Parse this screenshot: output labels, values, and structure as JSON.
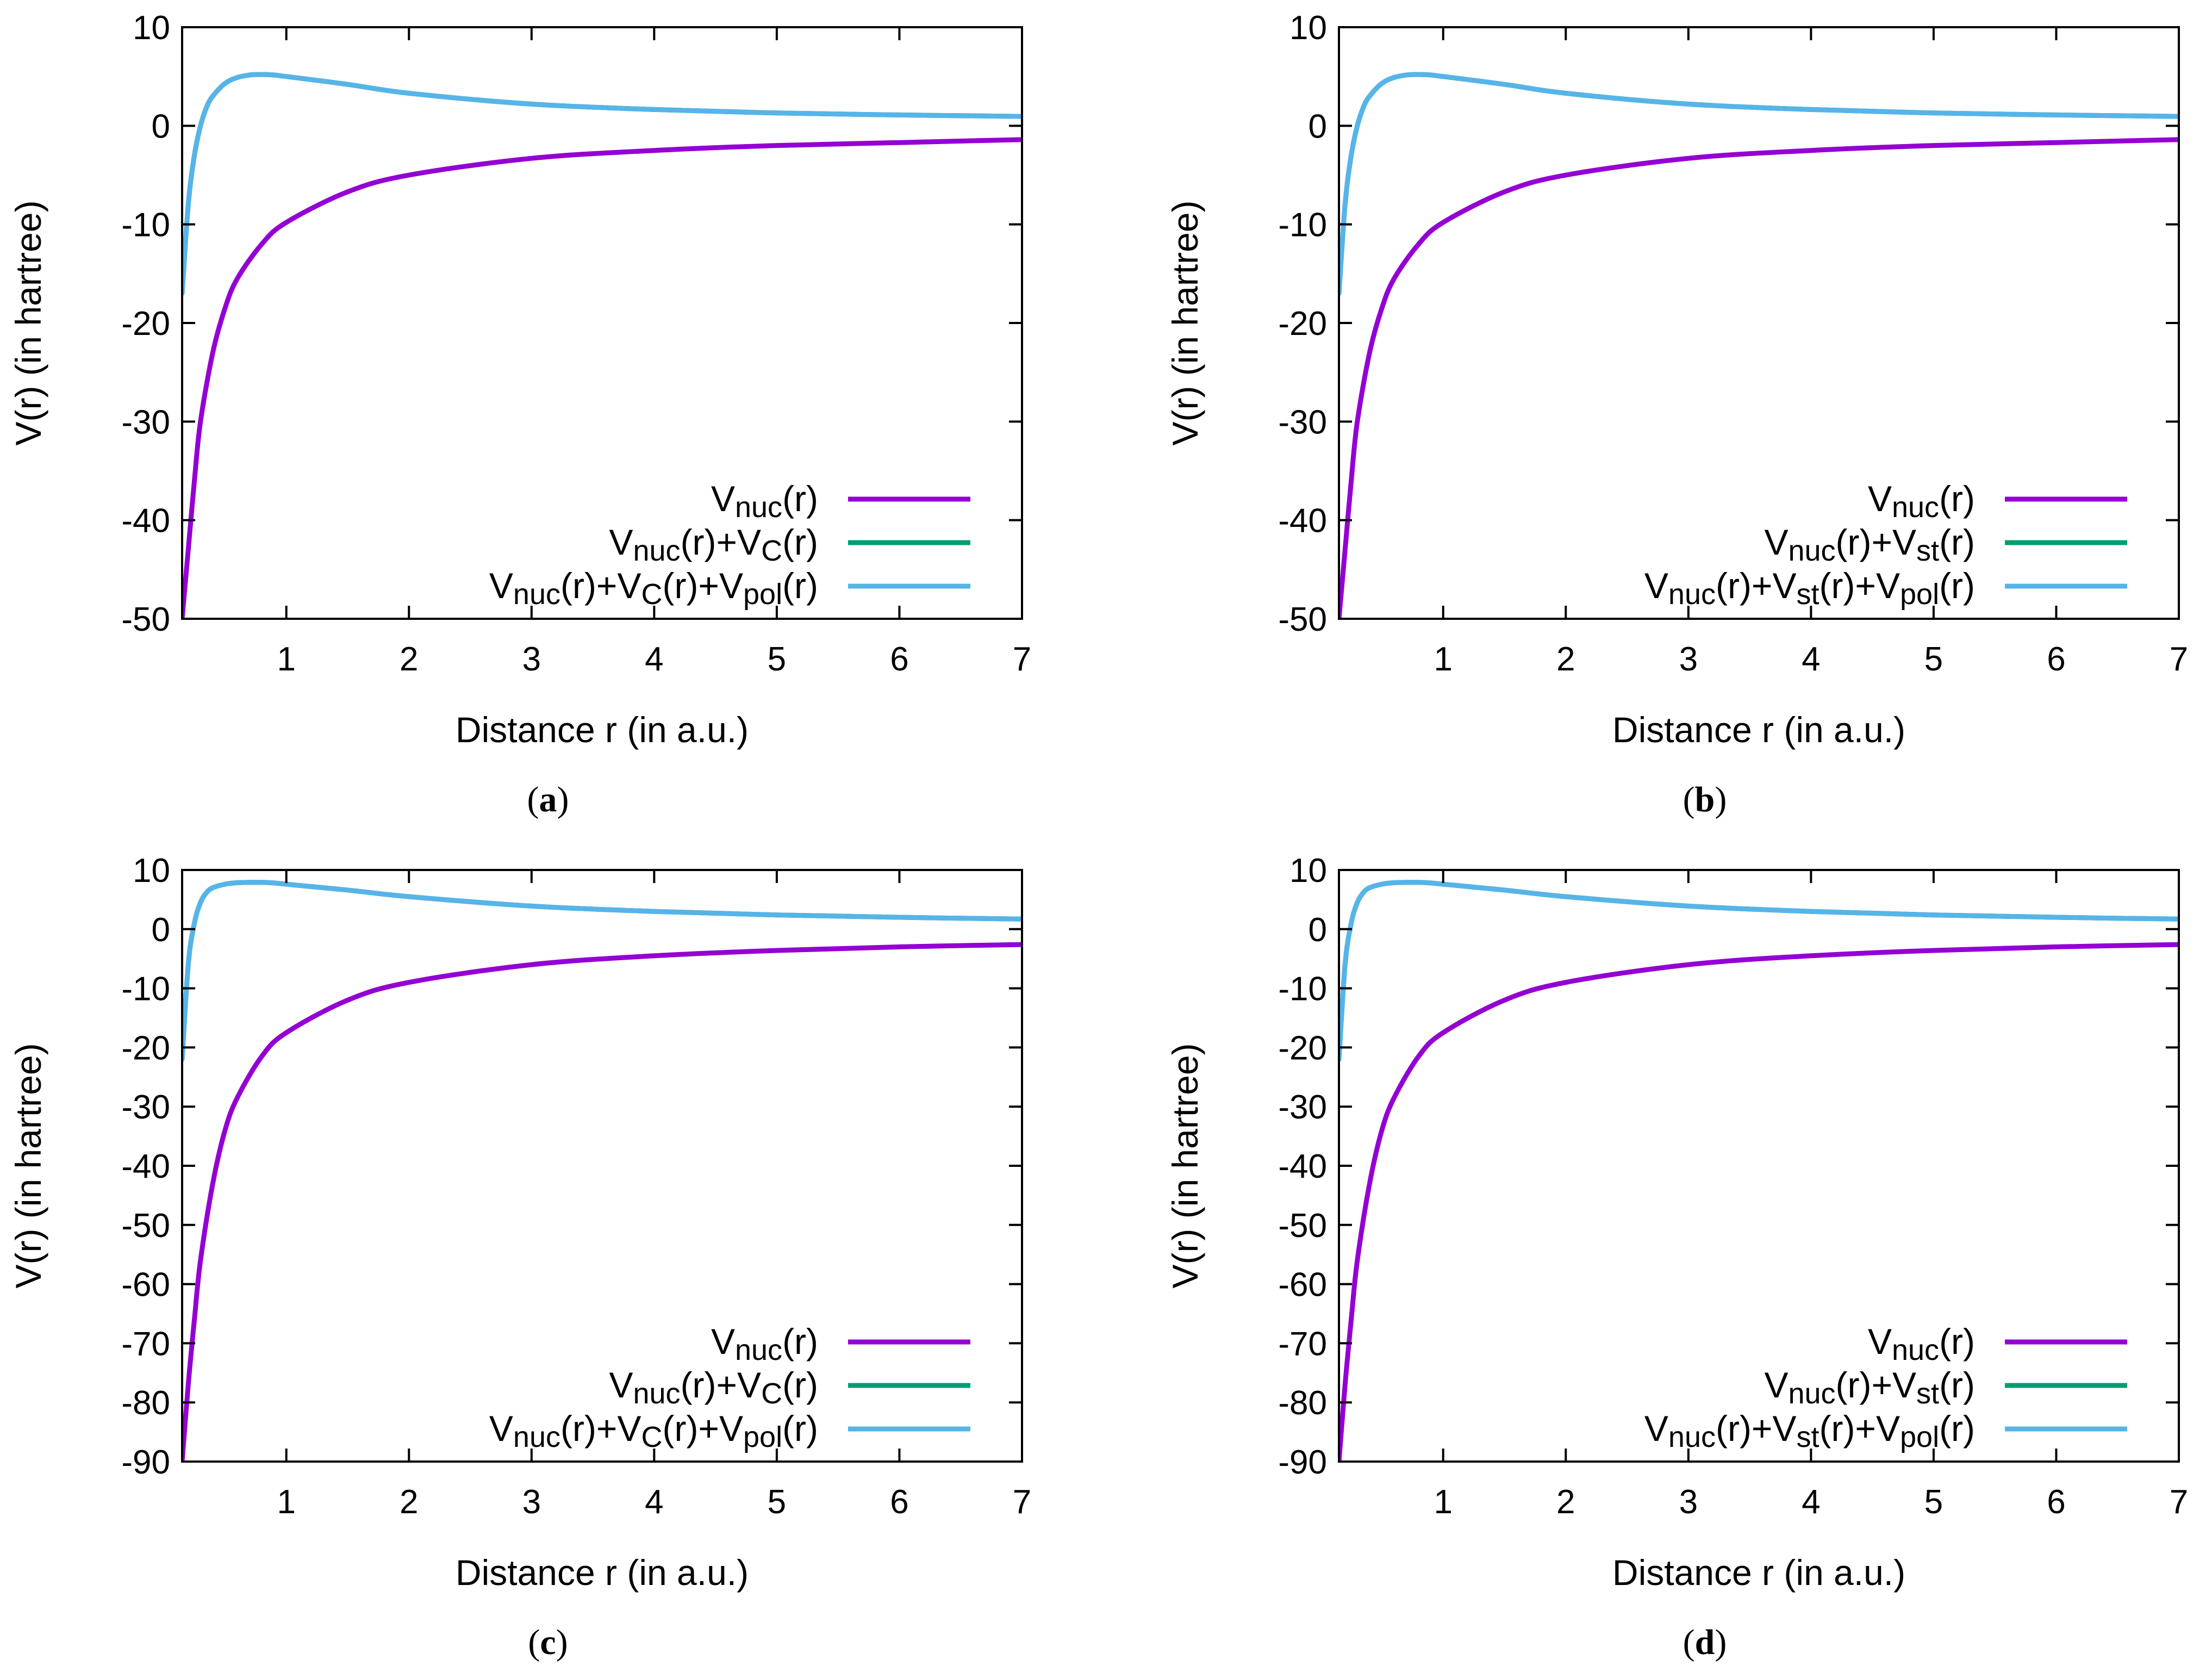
{
  "figure": {
    "panels": [
      {
        "caption": "a",
        "legend": [
          {
            "color": "#9400D3",
            "parts": [
              {
                "t": "V"
              },
              {
                "t": "nuc",
                "sub": true
              },
              {
                "t": "(r)"
              }
            ]
          },
          {
            "color": "#009E73",
            "parts": [
              {
                "t": "V"
              },
              {
                "t": "nuc",
                "sub": true
              },
              {
                "t": "(r)+V"
              },
              {
                "t": "C",
                "sub": true
              },
              {
                "t": "(r)"
              }
            ]
          },
          {
            "color": "#56B4E9",
            "parts": [
              {
                "t": "V"
              },
              {
                "t": "nuc",
                "sub": true
              },
              {
                "t": "(r)+V"
              },
              {
                "t": "C",
                "sub": true
              },
              {
                "t": "(r)+V"
              },
              {
                "t": "pol",
                "sub": true
              },
              {
                "t": "(r)"
              }
            ]
          }
        ]
      },
      {
        "caption": "b",
        "legend": [
          {
            "color": "#9400D3",
            "parts": [
              {
                "t": "V"
              },
              {
                "t": "nuc",
                "sub": true
              },
              {
                "t": "(r)"
              }
            ]
          },
          {
            "color": "#009E73",
            "parts": [
              {
                "t": "V"
              },
              {
                "t": "nuc",
                "sub": true
              },
              {
                "t": "(r)+V"
              },
              {
                "t": "st",
                "sub": true
              },
              {
                "t": "(r)"
              }
            ]
          },
          {
            "color": "#56B4E9",
            "parts": [
              {
                "t": "V"
              },
              {
                "t": "nuc",
                "sub": true
              },
              {
                "t": "(r)+V"
              },
              {
                "t": "st",
                "sub": true
              },
              {
                "t": "(r)+V"
              },
              {
                "t": "pol",
                "sub": true
              },
              {
                "t": "(r)"
              }
            ]
          }
        ]
      },
      {
        "caption": "c",
        "legend": [
          {
            "color": "#9400D3",
            "parts": [
              {
                "t": "V"
              },
              {
                "t": "nuc",
                "sub": true
              },
              {
                "t": "(r)"
              }
            ]
          },
          {
            "color": "#009E73",
            "parts": [
              {
                "t": "V"
              },
              {
                "t": "nuc",
                "sub": true
              },
              {
                "t": "(r)+V"
              },
              {
                "t": "C",
                "sub": true
              },
              {
                "t": "(r)"
              }
            ]
          },
          {
            "color": "#56B4E9",
            "parts": [
              {
                "t": "V"
              },
              {
                "t": "nuc",
                "sub": true
              },
              {
                "t": "(r)+V"
              },
              {
                "t": "C",
                "sub": true
              },
              {
                "t": "(r)+V"
              },
              {
                "t": "pol",
                "sub": true
              },
              {
                "t": "(r)"
              }
            ]
          }
        ]
      },
      {
        "caption": "d",
        "legend": [
          {
            "color": "#9400D3",
            "parts": [
              {
                "t": "V"
              },
              {
                "t": "nuc",
                "sub": true
              },
              {
                "t": "(r)"
              }
            ]
          },
          {
            "color": "#009E73",
            "parts": [
              {
                "t": "V"
              },
              {
                "t": "nuc",
                "sub": true
              },
              {
                "t": "(r)+V"
              },
              {
                "t": "st",
                "sub": true
              },
              {
                "t": "(r)"
              }
            ]
          },
          {
            "color": "#56B4E9",
            "parts": [
              {
                "t": "V"
              },
              {
                "t": "nuc",
                "sub": true
              },
              {
                "t": "(r)+V"
              },
              {
                "t": "st",
                "sub": true
              },
              {
                "t": "(r)+V"
              },
              {
                "t": "pol",
                "sub": true
              },
              {
                "t": "(r)"
              }
            ]
          }
        ]
      }
    ]
  },
  "chart_data": [
    {
      "panel": "a",
      "type": "line",
      "xlabel": "Distance r (in a.u.)",
      "ylabel": "V(r) (in hartree)",
      "xlim": [
        0.15,
        7
      ],
      "ylim": [
        -50,
        10
      ],
      "xticks": [
        1,
        2,
        3,
        4,
        5,
        6,
        7
      ],
      "yticks": [
        10,
        0,
        -10,
        -20,
        -30,
        -40,
        -50
      ],
      "legend_position": "bottom-right",
      "grid": false,
      "series": [
        {
          "name": "Vnuc(r)",
          "color": "#9400D3",
          "x": [
            0.15,
            0.2,
            0.25,
            0.3,
            0.4,
            0.5,
            0.6,
            0.8,
            1.0,
            1.5,
            2.0,
            3.0,
            4.0,
            5.0,
            6.0,
            7.0
          ],
          "y": [
            -50,
            -43,
            -36,
            -30,
            -23,
            -18.5,
            -15.5,
            -12,
            -9.8,
            -6.7,
            -5.0,
            -3.3,
            -2.5,
            -2.0,
            -1.7,
            -1.4
          ]
        },
        {
          "name": "Vnuc(r)+VC(r)",
          "color": "#009E73",
          "x": [
            0.15,
            0.2,
            0.25,
            0.3,
            0.35,
            0.4,
            0.5,
            0.6,
            0.7,
            0.8,
            0.9,
            1.0,
            1.5,
            2.0,
            3.0,
            4.0,
            5.0,
            6.0,
            7.0
          ],
          "y": [
            -17.0,
            -8.0,
            -3.0,
            0.0,
            1.9,
            3.0,
            4.3,
            4.9,
            5.15,
            5.2,
            5.15,
            5.0,
            4.2,
            3.3,
            2.2,
            1.65,
            1.3,
            1.1,
            0.95
          ]
        },
        {
          "name": "Vnuc(r)+VC(r)+Vpol(r)",
          "color": "#56B4E9",
          "x": [
            0.15,
            0.2,
            0.25,
            0.3,
            0.35,
            0.4,
            0.5,
            0.6,
            0.7,
            0.8,
            0.9,
            1.0,
            1.5,
            2.0,
            3.0,
            4.0,
            5.0,
            6.0,
            7.0
          ],
          "y": [
            -17.0,
            -8.0,
            -3.0,
            0.0,
            1.9,
            3.0,
            4.3,
            4.9,
            5.15,
            5.2,
            5.15,
            5.0,
            4.2,
            3.3,
            2.2,
            1.65,
            1.3,
            1.1,
            0.95
          ]
        }
      ]
    },
    {
      "panel": "b",
      "type": "line",
      "xlabel": "Distance r (in a.u.)",
      "ylabel": "V(r) (in hartree)",
      "xlim": [
        0.15,
        7
      ],
      "ylim": [
        -50,
        10
      ],
      "xticks": [
        1,
        2,
        3,
        4,
        5,
        6,
        7
      ],
      "yticks": [
        10,
        0,
        -10,
        -20,
        -30,
        -40,
        -50
      ],
      "legend_position": "bottom-right",
      "grid": false,
      "series": [
        {
          "name": "Vnuc(r)",
          "color": "#9400D3",
          "x": [
            0.15,
            0.2,
            0.25,
            0.3,
            0.4,
            0.5,
            0.6,
            0.8,
            1.0,
            1.5,
            2.0,
            3.0,
            4.0,
            5.0,
            6.0,
            7.0
          ],
          "y": [
            -50,
            -43,
            -36,
            -30,
            -23,
            -18.5,
            -15.5,
            -12,
            -9.8,
            -6.7,
            -5.0,
            -3.3,
            -2.5,
            -2.0,
            -1.7,
            -1.4
          ]
        },
        {
          "name": "Vnuc(r)+Vst(r)",
          "color": "#009E73",
          "x": [
            0.15,
            0.2,
            0.25,
            0.3,
            0.35,
            0.4,
            0.5,
            0.6,
            0.7,
            0.8,
            0.9,
            1.0,
            1.5,
            2.0,
            3.0,
            4.0,
            5.0,
            6.0,
            7.0
          ],
          "y": [
            -17.0,
            -8.0,
            -3.0,
            0.0,
            1.9,
            3.0,
            4.3,
            4.9,
            5.15,
            5.2,
            5.15,
            5.0,
            4.2,
            3.3,
            2.2,
            1.65,
            1.3,
            1.1,
            0.95
          ]
        },
        {
          "name": "Vnuc(r)+Vst(r)+Vpol(r)",
          "color": "#56B4E9",
          "x": [
            0.15,
            0.2,
            0.25,
            0.3,
            0.35,
            0.4,
            0.5,
            0.6,
            0.7,
            0.8,
            0.9,
            1.0,
            1.5,
            2.0,
            3.0,
            4.0,
            5.0,
            6.0,
            7.0
          ],
          "y": [
            -17.0,
            -8.0,
            -3.0,
            0.0,
            1.9,
            3.0,
            4.3,
            4.9,
            5.15,
            5.2,
            5.15,
            5.0,
            4.2,
            3.3,
            2.2,
            1.65,
            1.3,
            1.1,
            0.95
          ]
        }
      ]
    },
    {
      "panel": "c",
      "type": "line",
      "xlabel": "Distance r (in a.u.)",
      "ylabel": "V(r) (in hartree)",
      "xlim": [
        0.15,
        7
      ],
      "ylim": [
        -90,
        10
      ],
      "xticks": [
        1,
        2,
        3,
        4,
        5,
        6,
        7
      ],
      "yticks": [
        10,
        0,
        -10,
        -20,
        -30,
        -40,
        -50,
        -60,
        -70,
        -80,
        -90
      ],
      "legend_position": "bottom-right",
      "grid": false,
      "series": [
        {
          "name": "Vnuc(r)",
          "color": "#9400D3",
          "x": [
            0.15,
            0.2,
            0.25,
            0.3,
            0.4,
            0.5,
            0.6,
            0.8,
            1.0,
            1.5,
            2.0,
            3.0,
            4.0,
            5.0,
            6.0,
            7.0
          ],
          "y": [
            -90,
            -77,
            -66,
            -56,
            -43,
            -34,
            -28.5,
            -21.5,
            -17.5,
            -12,
            -9.0,
            -6.0,
            -4.5,
            -3.6,
            -3.0,
            -2.6
          ]
        },
        {
          "name": "Vnuc(r)+VC(r)",
          "color": "#009E73",
          "x": [
            0.15,
            0.2,
            0.25,
            0.3,
            0.35,
            0.4,
            0.5,
            0.6,
            0.7,
            0.8,
            0.9,
            1.0,
            1.5,
            2.0,
            3.0,
            4.0,
            5.0,
            6.0,
            7.0
          ],
          "y": [
            -22.0,
            -6.0,
            1.0,
            4.5,
            6.2,
            7.0,
            7.6,
            7.85,
            7.9,
            7.9,
            7.8,
            7.6,
            6.6,
            5.5,
            3.9,
            3.0,
            2.4,
            2.0,
            1.7
          ]
        },
        {
          "name": "Vnuc(r)+VC(r)+Vpol(r)",
          "color": "#56B4E9",
          "x": [
            0.15,
            0.2,
            0.25,
            0.3,
            0.35,
            0.4,
            0.5,
            0.6,
            0.7,
            0.8,
            0.9,
            1.0,
            1.5,
            2.0,
            3.0,
            4.0,
            5.0,
            6.0,
            7.0
          ],
          "y": [
            -22.0,
            -6.0,
            1.0,
            4.5,
            6.2,
            7.0,
            7.6,
            7.85,
            7.9,
            7.9,
            7.8,
            7.6,
            6.6,
            5.5,
            3.9,
            3.0,
            2.4,
            2.0,
            1.7
          ]
        }
      ]
    },
    {
      "panel": "d",
      "type": "line",
      "xlabel": "Distance r (in a.u.)",
      "ylabel": "V(r) (in hartree)",
      "xlim": [
        0.15,
        7
      ],
      "ylim": [
        -90,
        10
      ],
      "xticks": [
        1,
        2,
        3,
        4,
        5,
        6,
        7
      ],
      "yticks": [
        10,
        0,
        -10,
        -20,
        -30,
        -40,
        -50,
        -60,
        -70,
        -80,
        -90
      ],
      "legend_position": "bottom-right",
      "grid": false,
      "series": [
        {
          "name": "Vnuc(r)",
          "color": "#9400D3",
          "x": [
            0.15,
            0.2,
            0.25,
            0.3,
            0.4,
            0.5,
            0.6,
            0.8,
            1.0,
            1.5,
            2.0,
            3.0,
            4.0,
            5.0,
            6.0,
            7.0
          ],
          "y": [
            -90,
            -77,
            -66,
            -56,
            -43,
            -34,
            -28.5,
            -21.5,
            -17.5,
            -12,
            -9.0,
            -6.0,
            -4.5,
            -3.6,
            -3.0,
            -2.6
          ]
        },
        {
          "name": "Vnuc(r)+Vst(r)",
          "color": "#009E73",
          "x": [
            0.15,
            0.2,
            0.25,
            0.3,
            0.35,
            0.4,
            0.5,
            0.6,
            0.7,
            0.8,
            0.9,
            1.0,
            1.5,
            2.0,
            3.0,
            4.0,
            5.0,
            6.0,
            7.0
          ],
          "y": [
            -22.0,
            -6.0,
            1.0,
            4.5,
            6.2,
            7.0,
            7.6,
            7.85,
            7.9,
            7.9,
            7.8,
            7.6,
            6.6,
            5.5,
            3.9,
            3.0,
            2.4,
            2.0,
            1.7
          ]
        },
        {
          "name": "Vnuc(r)+Vst(r)+Vpol(r)",
          "color": "#56B4E9",
          "x": [
            0.15,
            0.2,
            0.25,
            0.3,
            0.35,
            0.4,
            0.5,
            0.6,
            0.7,
            0.8,
            0.9,
            1.0,
            1.5,
            2.0,
            3.0,
            4.0,
            5.0,
            6.0,
            7.0
          ],
          "y": [
            -22.0,
            -6.0,
            1.0,
            4.5,
            6.2,
            7.0,
            7.6,
            7.85,
            7.9,
            7.9,
            7.8,
            7.6,
            6.6,
            5.5,
            3.9,
            3.0,
            2.4,
            2.0,
            1.7
          ]
        }
      ]
    }
  ]
}
